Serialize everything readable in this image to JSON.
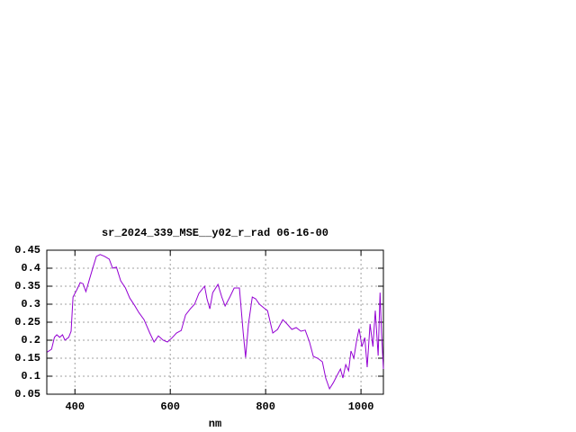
{
  "chart_data": {
    "type": "line",
    "title": "sr_2024_339_MSE__y02_r_rad 06-16-00",
    "x_label": "nm",
    "xlim": [
      341,
      1047
    ],
    "xticks": [
      400,
      600,
      800,
      1000
    ],
    "ylim": [
      0.05,
      0.45
    ],
    "yticks": [
      0.05,
      0.1,
      0.15,
      0.2,
      0.25,
      0.3,
      0.35,
      0.4,
      0.45
    ],
    "grid": true,
    "x": [
      342,
      351,
      357,
      362,
      368,
      374,
      379,
      387,
      392,
      396,
      404,
      411,
      417,
      423,
      430,
      438,
      445,
      453,
      462,
      472,
      479,
      487,
      496,
      506,
      515,
      525,
      534,
      545,
      557,
      566,
      575,
      585,
      594,
      604,
      613,
      623,
      632,
      642,
      651,
      660,
      672,
      677,
      683,
      689,
      700,
      708,
      715,
      725,
      734,
      745,
      753,
      758,
      764,
      772,
      779,
      787,
      796,
      804,
      815,
      825,
      836,
      845,
      855,
      864,
      874,
      883,
      892,
      900,
      909,
      919,
      926,
      934,
      942,
      949,
      957,
      962,
      968,
      974,
      979,
      985,
      991,
      996,
      1002,
      1008,
      1013,
      1019,
      1025,
      1030,
      1036,
      1040,
      1043,
      1047
    ],
    "series": [
      {
        "color": "#9400d3",
        "values": [
          0.167,
          0.175,
          0.208,
          0.215,
          0.208,
          0.215,
          0.2,
          0.208,
          0.225,
          0.32,
          0.34,
          0.36,
          0.357,
          0.335,
          0.367,
          0.403,
          0.433,
          0.438,
          0.433,
          0.425,
          0.4,
          0.403,
          0.365,
          0.345,
          0.317,
          0.297,
          0.277,
          0.257,
          0.22,
          0.195,
          0.212,
          0.2,
          0.195,
          0.207,
          0.22,
          0.227,
          0.27,
          0.287,
          0.3,
          0.33,
          0.35,
          0.315,
          0.287,
          0.332,
          0.355,
          0.32,
          0.295,
          0.32,
          0.345,
          0.345,
          0.22,
          0.152,
          0.245,
          0.32,
          0.315,
          0.3,
          0.29,
          0.282,
          0.22,
          0.23,
          0.257,
          0.245,
          0.23,
          0.235,
          0.225,
          0.228,
          0.195,
          0.155,
          0.15,
          0.14,
          0.095,
          0.065,
          0.082,
          0.1,
          0.12,
          0.095,
          0.132,
          0.115,
          0.17,
          0.15,
          0.2,
          0.232,
          0.182,
          0.207,
          0.125,
          0.245,
          0.182,
          0.282,
          0.157,
          0.332,
          0.22,
          0.12
        ]
      }
    ]
  }
}
